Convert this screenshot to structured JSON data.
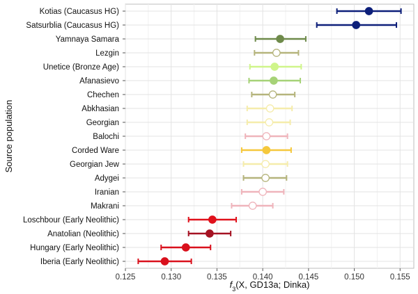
{
  "chart_data": {
    "type": "scatter",
    "subtype": "dot-with-error-bars",
    "title": "",
    "xlabel": "f3(X, GD13a; Dinka)",
    "xlabel_parts": {
      "f": "f",
      "sub": "3",
      "rest": "(X, GD13a; Dinka)"
    },
    "ylabel": "Source population",
    "xlim": [
      0.125,
      0.1565
    ],
    "xticks": [
      0.125,
      0.13,
      0.135,
      0.14,
      0.145,
      0.15,
      0.155
    ],
    "xtick_labels": [
      "0.125",
      "0.130",
      "0.135",
      "0.140",
      "0.145",
      "0.150",
      "0.155"
    ],
    "grid": true,
    "points": [
      {
        "label": "Kotias (Caucasus HG)",
        "value": 0.1516,
        "low": 0.1481,
        "high": 0.1551,
        "color": "#0d1f7a",
        "filled": true
      },
      {
        "label": "Satsurblia (Caucasus HG)",
        "value": 0.1502,
        "low": 0.1459,
        "high": 0.1546,
        "color": "#0d1f7a",
        "filled": true
      },
      {
        "label": "Yamnaya Samara",
        "value": 0.1419,
        "low": 0.1392,
        "high": 0.1447,
        "color": "#6e8a4a",
        "filled": true
      },
      {
        "label": "Lezgin",
        "value": 0.1415,
        "low": 0.1391,
        "high": 0.1439,
        "color": "#b5b47c",
        "filled": false
      },
      {
        "label": "Unetice (Bronze Age)",
        "value": 0.1413,
        "low": 0.1386,
        "high": 0.1442,
        "color": "#cff58a",
        "filled": true
      },
      {
        "label": "Afanasievo",
        "value": 0.1412,
        "low": 0.1385,
        "high": 0.1441,
        "color": "#a6d277",
        "filled": true
      },
      {
        "label": "Chechen",
        "value": 0.1411,
        "low": 0.1388,
        "high": 0.1435,
        "color": "#b5b47c",
        "filled": false
      },
      {
        "label": "Abkhasian",
        "value": 0.1408,
        "low": 0.1383,
        "high": 0.1432,
        "color": "#f5ecab",
        "filled": false
      },
      {
        "label": "Georgian",
        "value": 0.1407,
        "low": 0.1383,
        "high": 0.143,
        "color": "#f5ecab",
        "filled": false
      },
      {
        "label": "Balochi",
        "value": 0.1404,
        "low": 0.1381,
        "high": 0.1427,
        "color": "#efb4bb",
        "filled": false
      },
      {
        "label": "Corded Ware",
        "value": 0.1404,
        "low": 0.1377,
        "high": 0.1431,
        "color": "#f5c83c",
        "filled": true
      },
      {
        "label": "Georgian Jew",
        "value": 0.1403,
        "low": 0.1379,
        "high": 0.1427,
        "color": "#f5ecab",
        "filled": false
      },
      {
        "label": "Adygei",
        "value": 0.1403,
        "low": 0.1379,
        "high": 0.1426,
        "color": "#b5b47c",
        "filled": false
      },
      {
        "label": "Iranian",
        "value": 0.14,
        "low": 0.1377,
        "high": 0.1423,
        "color": "#efb4bb",
        "filled": false
      },
      {
        "label": "Makrani",
        "value": 0.1389,
        "low": 0.1366,
        "high": 0.1411,
        "color": "#efb4bb",
        "filled": false
      },
      {
        "label": "Loschbour (Early Neolithic)",
        "value": 0.1345,
        "low": 0.1319,
        "high": 0.1371,
        "color": "#e0111b",
        "filled": true
      },
      {
        "label": "Anatolian (Neolithic)",
        "value": 0.1342,
        "low": 0.1319,
        "high": 0.1365,
        "color": "#a51222",
        "filled": true
      },
      {
        "label": "Hungary (Early Neolithic)",
        "value": 0.1316,
        "low": 0.1289,
        "high": 0.1343,
        "color": "#d9101c",
        "filled": true
      },
      {
        "label": "Iberia (Early Neolithic)",
        "value": 0.1293,
        "low": 0.1264,
        "high": 0.1322,
        "color": "#d9101c",
        "filled": true
      }
    ]
  }
}
